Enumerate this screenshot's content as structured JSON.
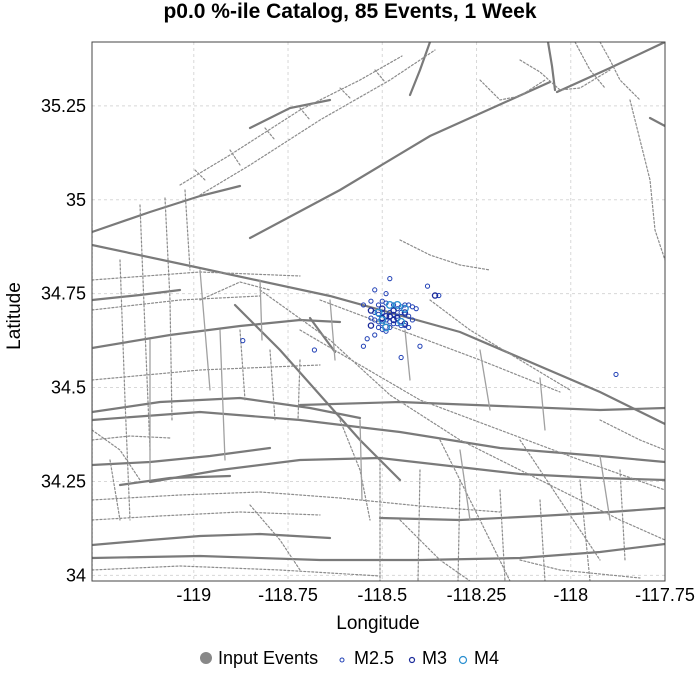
{
  "chart_data": {
    "type": "scatter",
    "title": "p0.0 %-ile Catalog, 85 Events, 1 Week",
    "xlabel": "Longitude",
    "ylabel": "Latitude",
    "xlim": [
      -119.27,
      -117.75
    ],
    "ylim": [
      33.985,
      35.42
    ],
    "xticks": [
      -119,
      -118.75,
      -118.5,
      -118.25,
      -118,
      -117.75
    ],
    "xtick_labels": [
      "-119",
      "-118.75",
      "-118.5",
      "-118.25",
      "-118",
      "-117.75"
    ],
    "yticks": [
      34,
      34.25,
      34.5,
      34.75,
      35,
      35.25
    ],
    "ytick_labels": [
      "34",
      "34.25",
      "34.5",
      "34.75",
      "35",
      "35.25"
    ],
    "grid": true,
    "legend_position": "bottom",
    "legend": [
      {
        "label": "Input Events",
        "marker": "filled-circle"
      },
      {
        "label": "M2.5",
        "marker": "small-circle"
      },
      {
        "label": "M3",
        "marker": "circle"
      },
      {
        "label": "M4",
        "marker": "large-circle"
      }
    ],
    "colors": {
      "input": "#888888",
      "m25": "#1f3fb5",
      "m3": "#1a2a9a",
      "m4": "#2a8fd0",
      "faults": "#7a7a7a",
      "grid": "#d8d8d8"
    },
    "series": [
      {
        "name": "M2.5",
        "points": [
          [
            -118.48,
            34.79
          ],
          [
            -118.52,
            34.76
          ],
          [
            -118.49,
            34.75
          ],
          [
            -118.38,
            34.77
          ],
          [
            -118.35,
            34.745
          ],
          [
            -118.55,
            34.72
          ],
          [
            -118.53,
            34.73
          ],
          [
            -118.51,
            34.72
          ],
          [
            -118.5,
            34.73
          ],
          [
            -118.49,
            34.725
          ],
          [
            -118.47,
            34.72
          ],
          [
            -118.46,
            34.71
          ],
          [
            -118.45,
            34.715
          ],
          [
            -118.44,
            34.72
          ],
          [
            -118.43,
            34.72
          ],
          [
            -118.42,
            34.715
          ],
          [
            -118.41,
            34.71
          ],
          [
            -118.52,
            34.7
          ],
          [
            -118.51,
            34.695
          ],
          [
            -118.5,
            34.7
          ],
          [
            -118.48,
            34.7
          ],
          [
            -118.47,
            34.695
          ],
          [
            -118.46,
            34.69
          ],
          [
            -118.45,
            34.7
          ],
          [
            -118.44,
            34.695
          ],
          [
            -118.43,
            34.69
          ],
          [
            -118.42,
            34.68
          ],
          [
            -118.53,
            34.685
          ],
          [
            -118.52,
            34.68
          ],
          [
            -118.51,
            34.675
          ],
          [
            -118.5,
            34.67
          ],
          [
            -118.49,
            34.68
          ],
          [
            -118.48,
            34.675
          ],
          [
            -118.47,
            34.67
          ],
          [
            -118.46,
            34.67
          ],
          [
            -118.45,
            34.665
          ],
          [
            -118.44,
            34.665
          ],
          [
            -118.43,
            34.66
          ],
          [
            -118.51,
            34.66
          ],
          [
            -118.5,
            34.655
          ],
          [
            -118.49,
            34.65
          ],
          [
            -118.48,
            34.66
          ],
          [
            -118.52,
            34.64
          ],
          [
            -118.54,
            34.63
          ],
          [
            -118.55,
            34.61
          ],
          [
            -118.45,
            34.58
          ],
          [
            -118.4,
            34.61
          ],
          [
            -118.68,
            34.6
          ],
          [
            -118.87,
            34.625
          ],
          [
            -117.88,
            34.535
          ]
        ]
      },
      {
        "name": "M3",
        "points": [
          [
            -118.5,
            34.71
          ],
          [
            -118.47,
            34.705
          ],
          [
            -118.44,
            34.7
          ],
          [
            -118.49,
            34.69
          ],
          [
            -118.46,
            34.685
          ],
          [
            -118.53,
            34.705
          ],
          [
            -118.5,
            34.685
          ],
          [
            -118.44,
            34.67
          ],
          [
            -118.48,
            34.69
          ],
          [
            -118.36,
            34.745
          ],
          [
            -118.53,
            34.665
          ],
          [
            -118.47,
            34.68
          ]
        ]
      },
      {
        "name": "M4",
        "points": [
          [
            -118.48,
            34.72
          ],
          [
            -118.46,
            34.72
          ],
          [
            -118.5,
            34.68
          ],
          [
            -118.49,
            34.66
          ],
          [
            -118.45,
            34.675
          ],
          [
            -118.51,
            34.7
          ],
          [
            -118.44,
            34.71
          ]
        ]
      }
    ]
  }
}
